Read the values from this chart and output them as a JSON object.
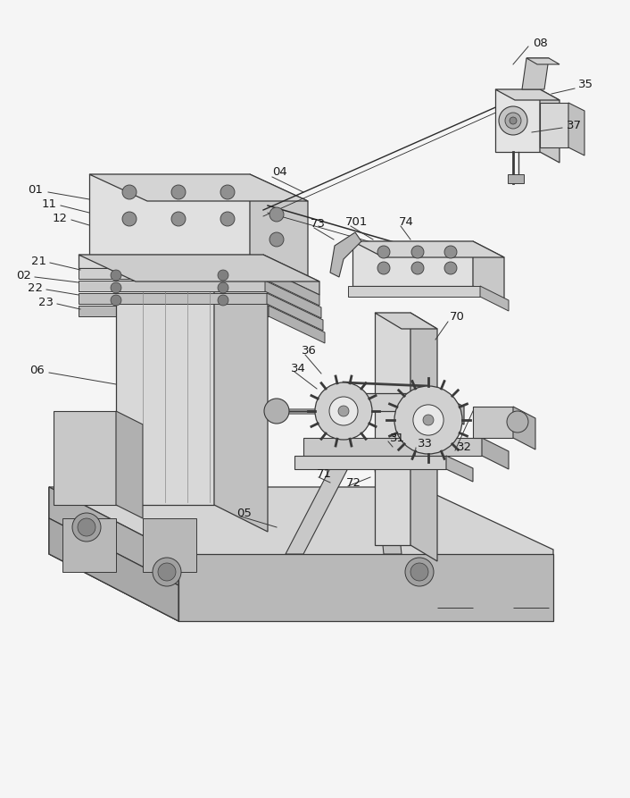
{
  "bg_color": "#f5f5f5",
  "line_color": "#3a3a3a",
  "face_light": "#e8e8e8",
  "face_mid": "#d0d0d0",
  "face_dark": "#b8b8b8",
  "face_side": "#c0c0c0",
  "fig_width": 7.06,
  "fig_height": 8.93,
  "dpi": 100,
  "label_fontsize": 9.5,
  "label_color": "#1a1a1a",
  "leader_color": "#3a3a3a",
  "leader_lw": 0.7
}
